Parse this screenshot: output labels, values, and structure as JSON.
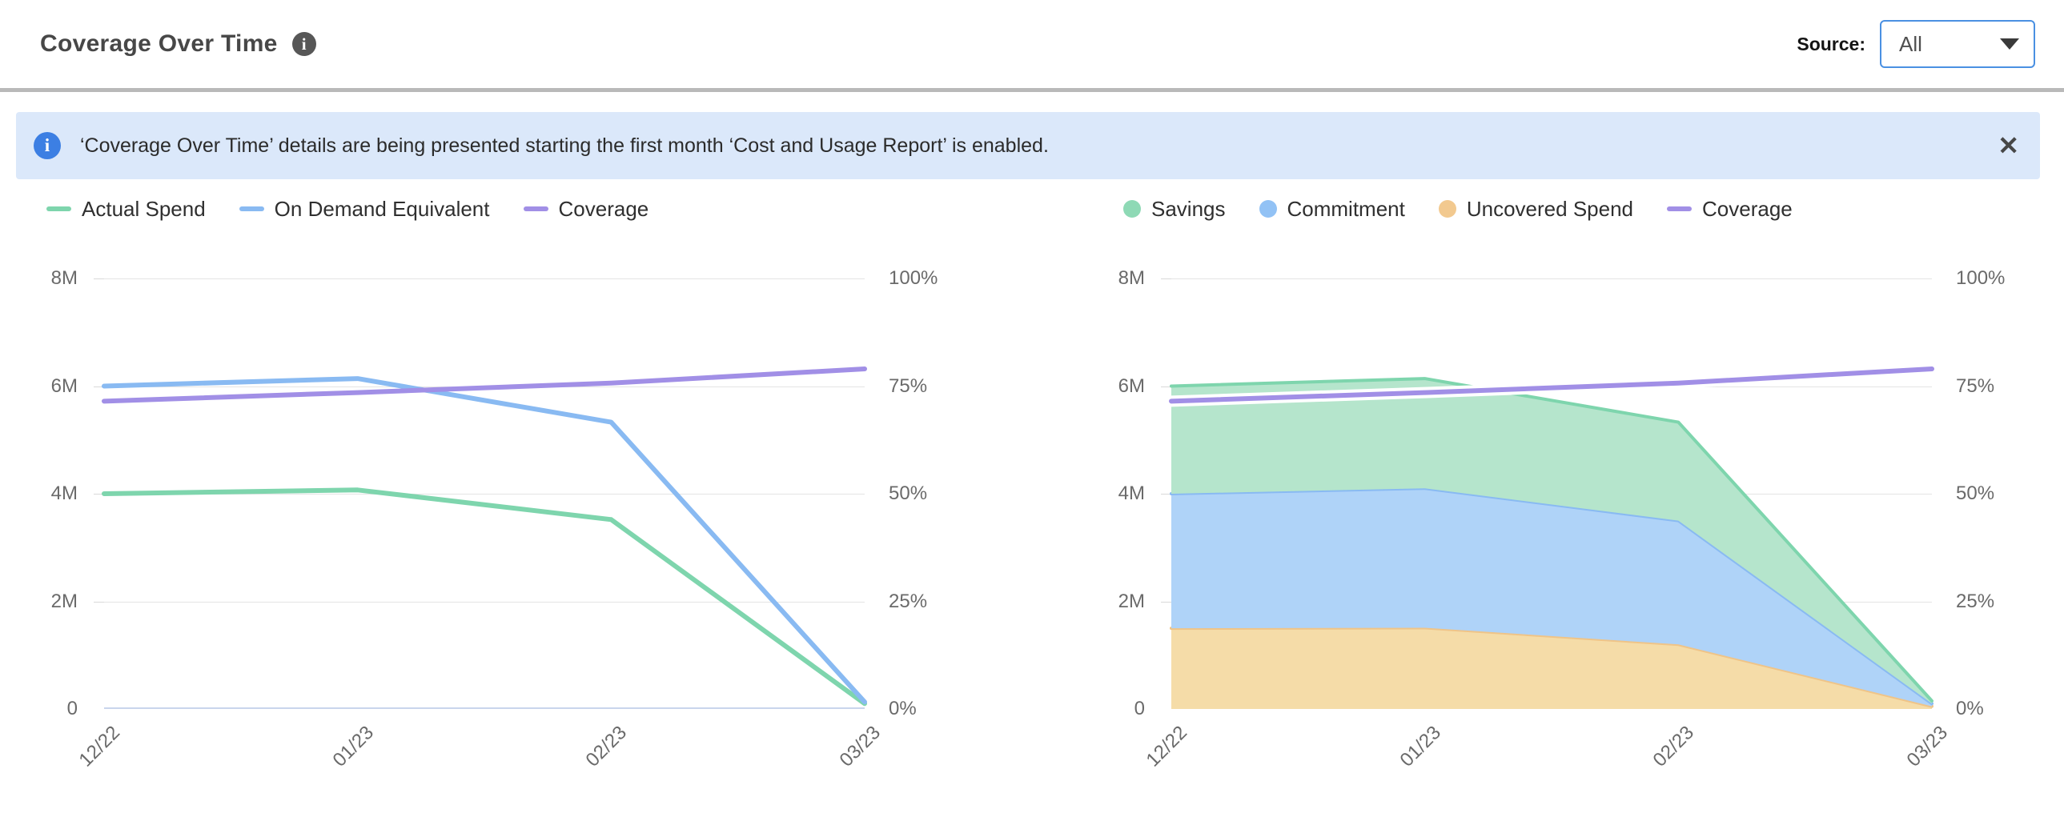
{
  "header": {
    "title": "Coverage Over Time",
    "info_icon_glyph": "i",
    "source_label": "Source:",
    "source_value": "All"
  },
  "banner": {
    "info_icon_glyph": "i",
    "text": "‘Coverage Over Time’ details are being presented starting the first month ‘Cost and Usage Report’ is enabled.",
    "close_icon_glyph": "✕"
  },
  "colors": {
    "green_line": "#7ed5ad",
    "green_fill": "#b5e5cc",
    "blue_line": "#89baf2",
    "blue_fill": "#afd3f8",
    "orange_line": "#efc488",
    "orange_fill": "#f5dca8",
    "purple_line": "#a18fe6",
    "banner_bg": "#dbe8fa",
    "banner_icon_blue": "#3c7fe3",
    "select_border_blue": "#4a90e2",
    "gridline": "#e4e4e4",
    "baseline": "#c9d5ec",
    "axis_text": "#6a6a6a"
  },
  "chart_data": [
    {
      "type": "line",
      "x": [
        "12/22",
        "01/23",
        "02/23",
        "03/23"
      ],
      "y_left": {
        "max": 8,
        "unit": "M",
        "ticks": [
          "8M",
          "6M",
          "4M",
          "2M",
          "0"
        ]
      },
      "y_right": {
        "max": 100,
        "unit": "%",
        "ticks": [
          "100%",
          "75%",
          "50%",
          "25%",
          "0%"
        ]
      },
      "grid": true,
      "legend_position": "top-left",
      "series": [
        {
          "name": "Actual Spend",
          "axis": "left",
          "kind": "line",
          "color": "#7ed5ad",
          "halo": false,
          "values": [
            4.0,
            4.07,
            3.52,
            0.1
          ]
        },
        {
          "name": "On Demand Equivalent",
          "axis": "left",
          "kind": "line",
          "color": "#89baf2",
          "halo": false,
          "values": [
            6.0,
            6.14,
            5.33,
            0.13
          ]
        },
        {
          "name": "Coverage",
          "axis": "right",
          "kind": "line",
          "color": "#a18fe6",
          "halo": false,
          "values": [
            71.5,
            73.5,
            75.7,
            79.0
          ]
        }
      ],
      "legend": [
        {
          "label": "Actual Spend",
          "swatch": "line",
          "color": "#7ed5ad"
        },
        {
          "label": "On Demand Equivalent",
          "swatch": "line",
          "color": "#89baf2"
        },
        {
          "label": "Coverage",
          "swatch": "line",
          "color": "#a18fe6"
        }
      ]
    },
    {
      "type": "area",
      "x": [
        "12/22",
        "01/23",
        "02/23",
        "03/23"
      ],
      "y_left": {
        "max": 8,
        "unit": "M",
        "ticks": [
          "8M",
          "6M",
          "4M",
          "2M",
          "0"
        ]
      },
      "y_right": {
        "max": 100,
        "unit": "%",
        "ticks": [
          "100%",
          "75%",
          "50%",
          "25%",
          "0%"
        ]
      },
      "grid": true,
      "legend_position": "top-left",
      "stack_order": [
        "Uncovered Spend",
        "Commitment",
        "Savings"
      ],
      "series": [
        {
          "name": "Savings",
          "axis": "left",
          "kind": "area",
          "color": "#7ed5ad",
          "fill": "#b5e5cc",
          "values": [
            2.0,
            2.04,
            1.83,
            0.05
          ]
        },
        {
          "name": "Commitment",
          "axis": "left",
          "kind": "area",
          "color": "#89baf2",
          "fill": "#afd3f8",
          "values": [
            2.5,
            2.59,
            2.3,
            0.05
          ]
        },
        {
          "name": "Uncovered Spend",
          "axis": "left",
          "kind": "area",
          "color": "#efc488",
          "fill": "#f5dca8",
          "values": [
            1.5,
            1.51,
            1.2,
            0.05
          ]
        },
        {
          "name": "Coverage",
          "axis": "right",
          "kind": "line",
          "color": "#a18fe6",
          "halo": true,
          "values": [
            71.5,
            73.5,
            75.7,
            79.0
          ]
        }
      ],
      "legend": [
        {
          "label": "Savings",
          "swatch": "dot",
          "color": "#8ed9b5"
        },
        {
          "label": "Commitment",
          "swatch": "dot",
          "color": "#92c2f5"
        },
        {
          "label": "Uncovered Spend",
          "swatch": "dot",
          "color": "#f2c98f"
        },
        {
          "label": "Coverage",
          "swatch": "line",
          "color": "#a18fe6"
        }
      ]
    }
  ]
}
